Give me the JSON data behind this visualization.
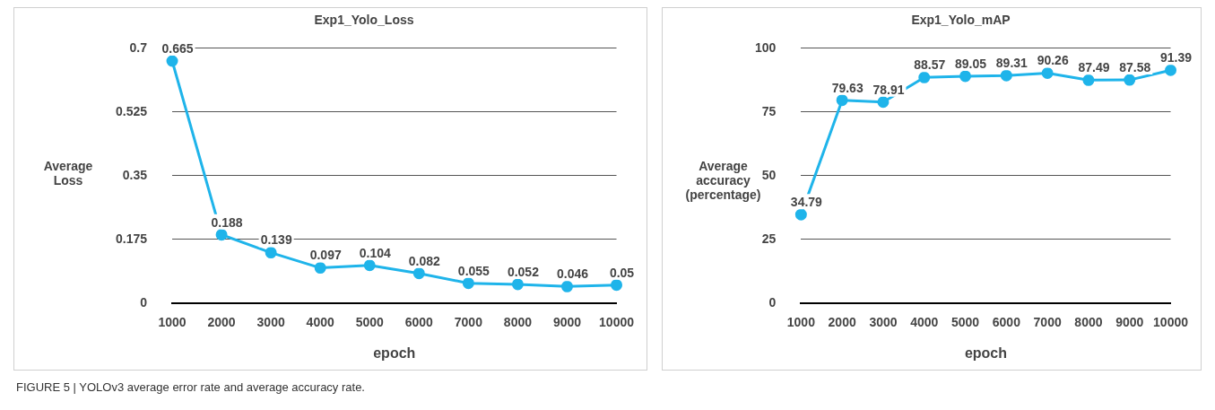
{
  "chart_data": [
    {
      "type": "line",
      "title": "Exp1_Yolo_Loss",
      "xlabel": "epoch",
      "ylabel": "Average Loss",
      "categories": [
        "1000",
        "2000",
        "3000",
        "4000",
        "5000",
        "6000",
        "7000",
        "8000",
        "9000",
        "10000"
      ],
      "series": [
        {
          "color": "#1fb4ea",
          "values": [
            0.665,
            0.188,
            0.139,
            0.097,
            0.104,
            0.082,
            0.055,
            0.052,
            0.046,
            0.05
          ]
        }
      ],
      "ylim": [
        0,
        0.7
      ],
      "yticks": [
        0,
        0.175,
        0.35,
        0.525,
        0.7
      ],
      "grid": "y",
      "legend": false,
      "marker": "circle",
      "line_style": "solid",
      "data_labels": true,
      "annotations": [
        "FIGURE 5 | YOLOv3 average error rate and average accuracy rate."
      ]
    },
    {
      "type": "line",
      "title": "Exp1_Yolo_mAP",
      "xlabel": "epoch",
      "ylabel": "Average accuracy (percentage)",
      "categories": [
        "1000",
        "2000",
        "3000",
        "4000",
        "5000",
        "6000",
        "7000",
        "8000",
        "9000",
        "10000"
      ],
      "series": [
        {
          "color": "#1fb4ea",
          "values": [
            34.79,
            79.63,
            78.91,
            88.57,
            89.05,
            89.31,
            90.26,
            87.49,
            87.58,
            91.39
          ]
        }
      ],
      "ylim": [
        0,
        100
      ],
      "yticks": [
        0,
        25,
        50,
        75,
        100
      ],
      "grid": "y",
      "legend": false,
      "marker": "circle",
      "line_style": "solid",
      "data_labels": true
    }
  ]
}
